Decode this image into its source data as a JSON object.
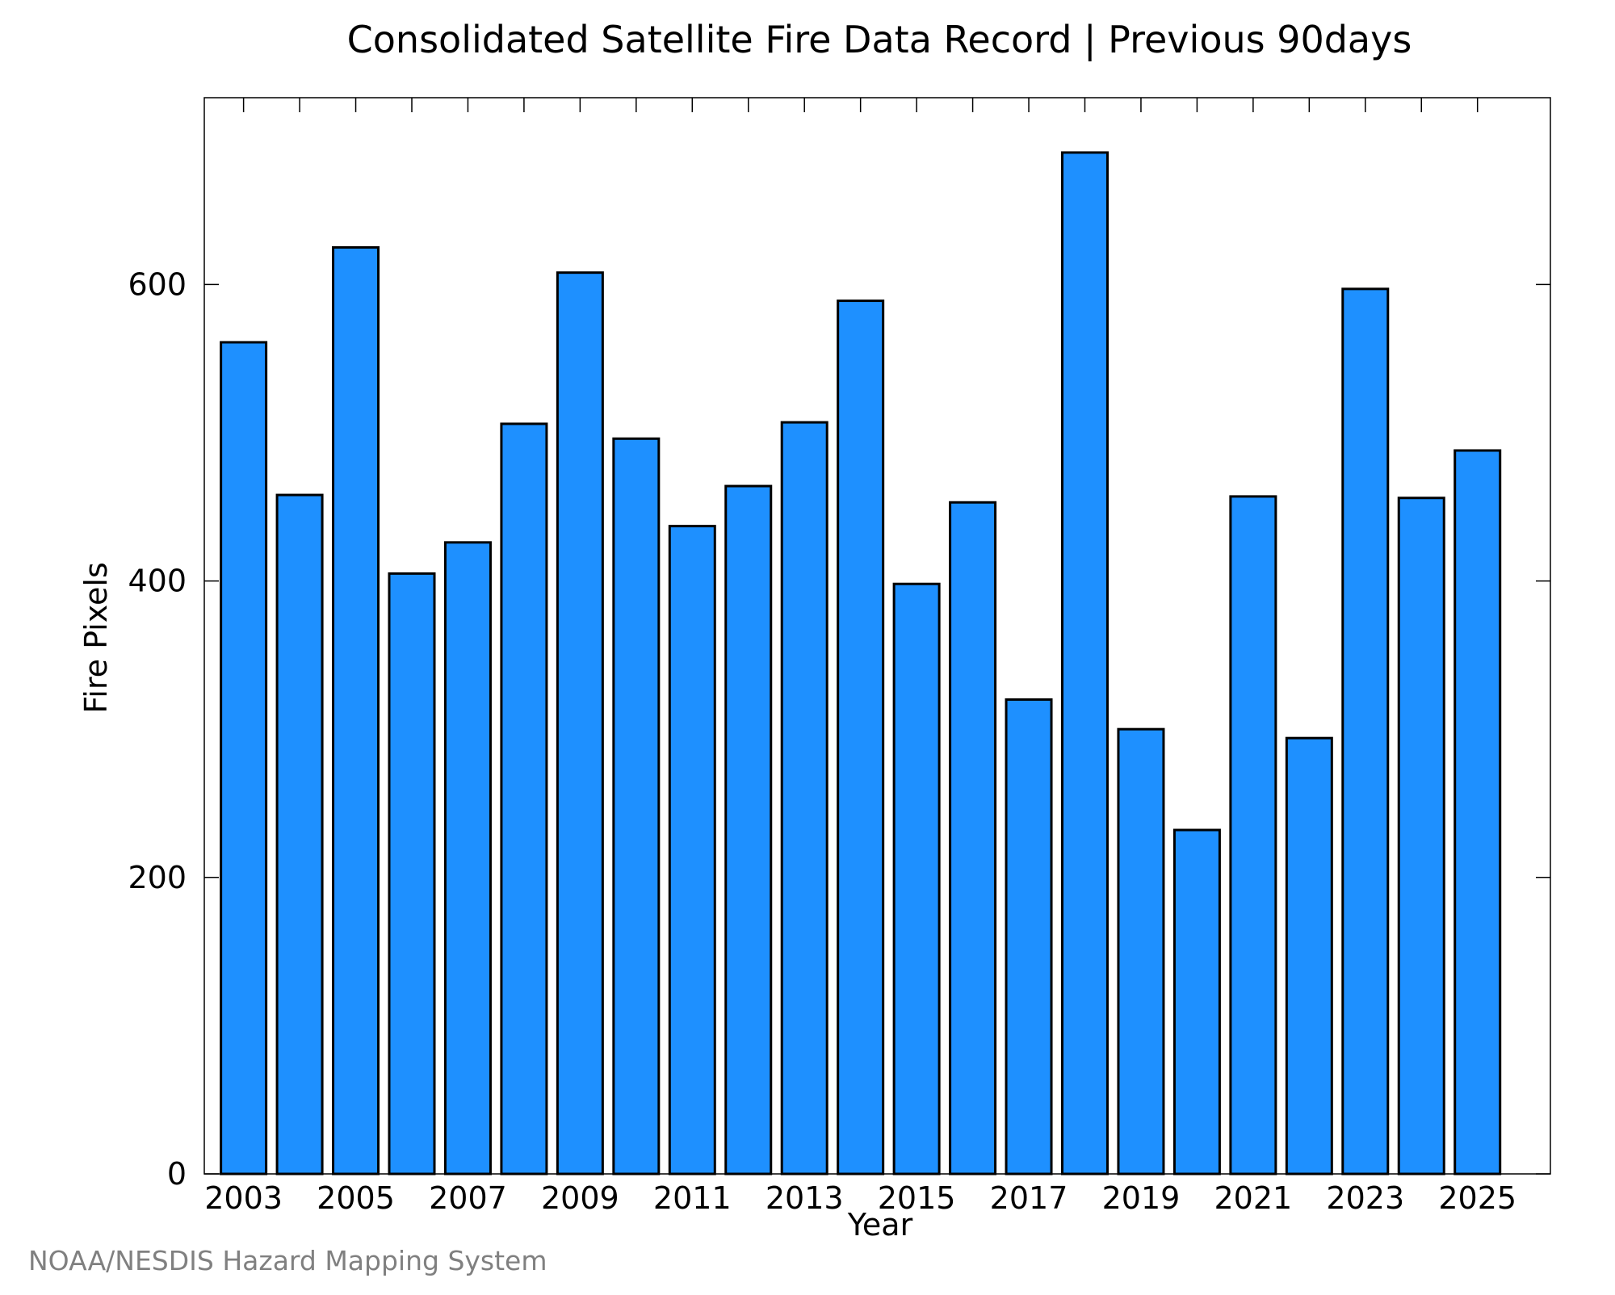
{
  "colors": {
    "bar_fill": "#1E90FF",
    "bar_stroke": "#000000",
    "credit_text": "#808080"
  },
  "credit": "NOAA/NESDIS Hazard Mapping System",
  "chart_data": {
    "type": "bar",
    "title": "Consolidated Satellite Fire Data Record | Previous 90days",
    "xlabel": "Year",
    "ylabel": "Fire Pixels",
    "categories": [
      2003,
      2004,
      2005,
      2006,
      2007,
      2008,
      2009,
      2010,
      2011,
      2012,
      2013,
      2014,
      2015,
      2016,
      2017,
      2018,
      2019,
      2020,
      2021,
      2022,
      2023,
      2024,
      2025
    ],
    "values": [
      561,
      458,
      625,
      405,
      426,
      506,
      608,
      496,
      437,
      464,
      507,
      589,
      398,
      453,
      320,
      689,
      300,
      232,
      457,
      294,
      597,
      456,
      488
    ],
    "x_tick_labels": [
      "2003",
      "2005",
      "2007",
      "2009",
      "2011",
      "2013",
      "2015",
      "2017",
      "2019",
      "2021",
      "2023",
      "2025"
    ],
    "y_tick_labels": [
      "0",
      "200",
      "400",
      "600"
    ],
    "y_ticks": [
      0,
      200,
      400,
      600
    ],
    "ylim": [
      0,
      726
    ],
    "xlim": [
      2002.3,
      2026.3
    ],
    "grid": false,
    "legend": "none"
  }
}
